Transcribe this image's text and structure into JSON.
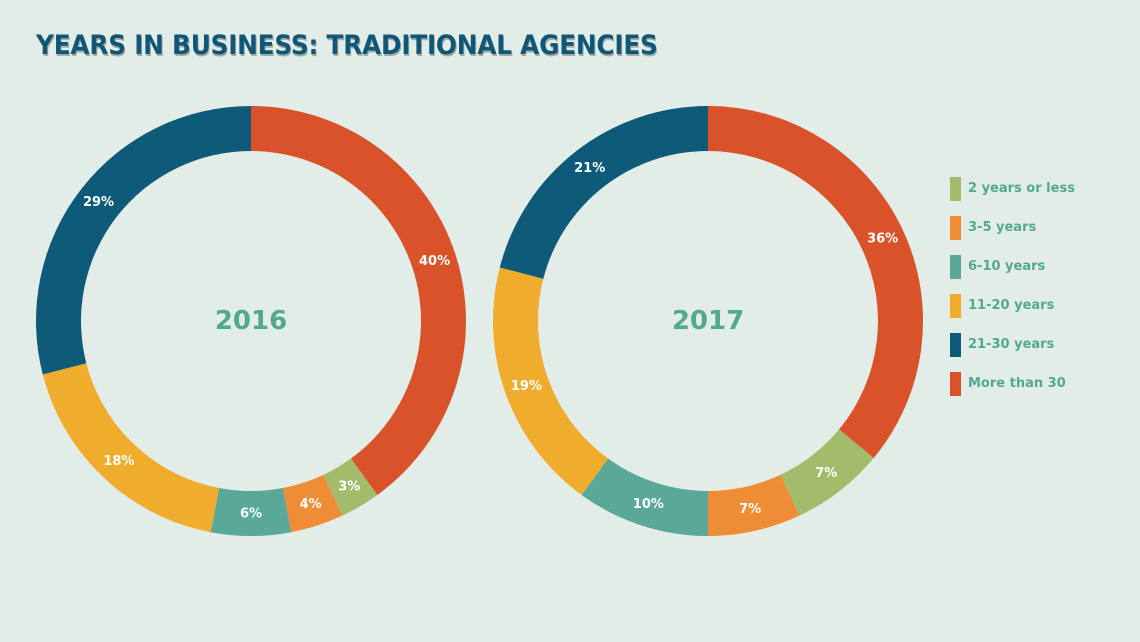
{
  "title": "YEARS IN BUSINESS: TRADITIONAL AGENCIES",
  "colors": {
    "title": "#0f5677",
    "background": "#e3ede7",
    "text_accent": "#53a98e"
  },
  "chart_data": {
    "type": "pie",
    "variant": "donut",
    "legend_position": "right",
    "categories": [
      "2 years or less",
      "3-5 years",
      "6-10 years",
      "11-20 years",
      "21-30 years",
      "More than 30"
    ],
    "category_colors": [
      "#a2bc6c",
      "#ee8d36",
      "#5aa897",
      "#f0ac2d",
      "#0e5a79",
      "#d9522a"
    ],
    "legend_labels": [
      "2 years or less",
      "3-5 years",
      "6-10 years",
      "11-20 years",
      "21-30 years",
      "More than 30"
    ],
    "series": [
      {
        "name": "2016",
        "values": [
          3,
          4,
          6,
          18,
          29,
          40
        ],
        "labels": [
          "3%",
          "4%",
          "6%",
          "18%",
          "29%",
          "40%"
        ]
      },
      {
        "name": "2017",
        "values": [
          7,
          7,
          10,
          19,
          21,
          36
        ],
        "labels": [
          "7%",
          "7%",
          "10%",
          "19%",
          "21%",
          "36%"
        ]
      }
    ]
  }
}
